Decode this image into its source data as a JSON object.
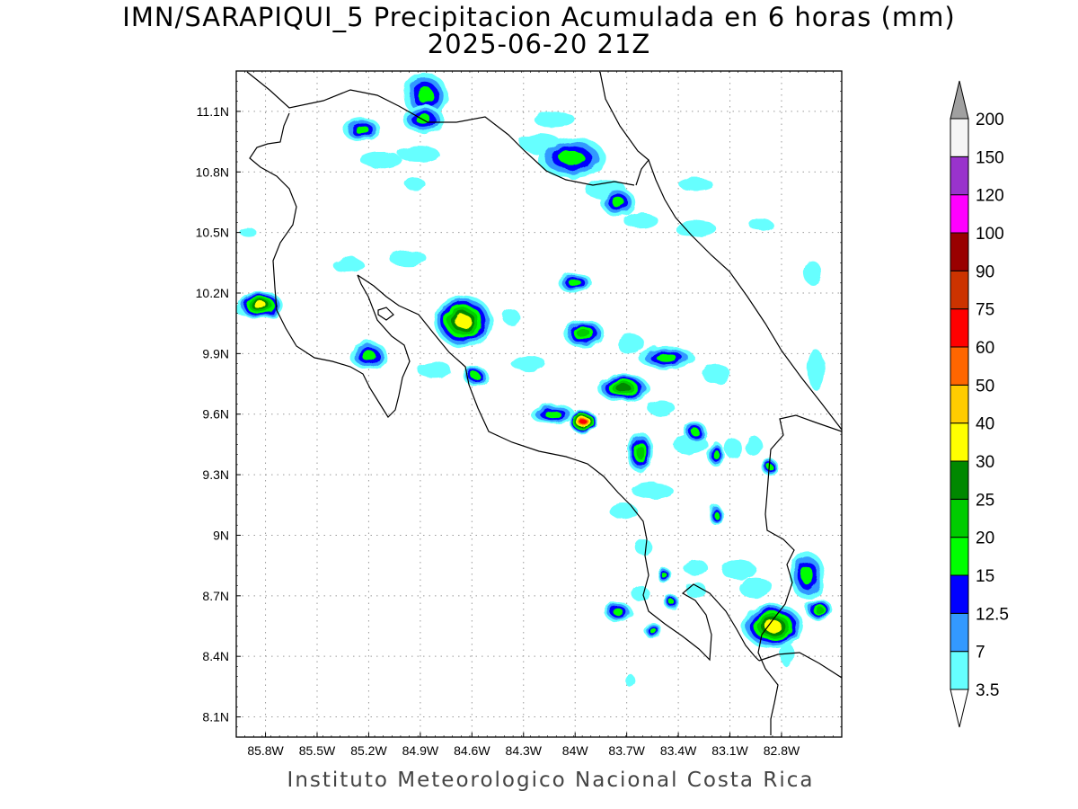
{
  "title": "IMN/SARAPIQUI_5 Precipitacion Acumulada en 6 horas (mm)",
  "subtitle": "2025-06-20 21Z",
  "credit": "Instituto Meteorologico Nacional Costa Rica",
  "axes": {
    "lon_ticks": [
      "85.8W",
      "85.5W",
      "85.2W",
      "84.9W",
      "84.6W",
      "84.3W",
      "84W",
      "83.7W",
      "83.4W",
      "83.1W",
      "82.8W"
    ],
    "lat_ticks": [
      "11.1N",
      "10.8N",
      "10.5N",
      "10.2N",
      "9.9N",
      "9.6N",
      "9.3N",
      "9N",
      "8.7N",
      "8.4N",
      "8.1N"
    ],
    "lon_range": [
      -85.97,
      -82.45
    ],
    "lat_range": [
      8.0,
      11.3
    ],
    "grid": true
  },
  "colorbar": {
    "levels": [
      "3.5",
      "7",
      "12.5",
      "15",
      "20",
      "25",
      "30",
      "40",
      "50",
      "60",
      "75",
      "90",
      "100",
      "120",
      "150",
      "200"
    ],
    "colors": [
      "#66ffff",
      "#3399ff",
      "#0000ff",
      "#00ff00",
      "#00cc00",
      "#008800",
      "#ffff00",
      "#ffcc00",
      "#ff6600",
      "#ff0000",
      "#cc3300",
      "#990000",
      "#ff00ff",
      "#9933cc",
      "#f5f5f5",
      "#a0a0a0"
    ]
  },
  "precip_cells": [
    {
      "lon": -84.87,
      "lat": 11.18,
      "rx": 0.13,
      "ry": 0.11,
      "peak": 3
    },
    {
      "lon": -84.88,
      "lat": 11.06,
      "rx": 0.12,
      "ry": 0.07,
      "peak": 3
    },
    {
      "lon": -85.24,
      "lat": 11.01,
      "rx": 0.11,
      "ry": 0.06,
      "peak": 3
    },
    {
      "lon": -84.02,
      "lat": 10.87,
      "rx": 0.2,
      "ry": 0.1,
      "peak": 3
    },
    {
      "lon": -83.75,
      "lat": 10.65,
      "rx": 0.1,
      "ry": 0.07,
      "peak": 3
    },
    {
      "lon": -85.83,
      "lat": 10.14,
      "rx": 0.13,
      "ry": 0.07,
      "peak": 6
    },
    {
      "lon": -84.65,
      "lat": 10.06,
      "rx": 0.17,
      "ry": 0.13,
      "peak": 6
    },
    {
      "lon": -85.2,
      "lat": 9.89,
      "rx": 0.11,
      "ry": 0.07,
      "peak": 3
    },
    {
      "lon": -84.58,
      "lat": 9.79,
      "rx": 0.07,
      "ry": 0.05,
      "peak": 3
    },
    {
      "lon": -84.0,
      "lat": 10.25,
      "rx": 0.1,
      "ry": 0.05,
      "peak": 3
    },
    {
      "lon": -83.95,
      "lat": 10.0,
      "rx": 0.12,
      "ry": 0.07,
      "peak": 4
    },
    {
      "lon": -83.47,
      "lat": 9.88,
      "rx": 0.16,
      "ry": 0.06,
      "peak": 3
    },
    {
      "lon": -83.72,
      "lat": 9.73,
      "rx": 0.15,
      "ry": 0.07,
      "peak": 5
    },
    {
      "lon": -84.13,
      "lat": 9.6,
      "rx": 0.13,
      "ry": 0.05,
      "peak": 3
    },
    {
      "lon": -83.95,
      "lat": 9.56,
      "rx": 0.08,
      "ry": 0.06,
      "peak": 9
    },
    {
      "lon": -83.62,
      "lat": 9.41,
      "rx": 0.08,
      "ry": 0.1,
      "peak": 4
    },
    {
      "lon": -83.3,
      "lat": 9.51,
      "rx": 0.07,
      "ry": 0.05,
      "peak": 3
    },
    {
      "lon": -83.18,
      "lat": 9.4,
      "rx": 0.05,
      "ry": 0.06,
      "peak": 3
    },
    {
      "lon": -82.87,
      "lat": 9.34,
      "rx": 0.05,
      "ry": 0.04,
      "peak": 3
    },
    {
      "lon": -83.18,
      "lat": 9.1,
      "rx": 0.04,
      "ry": 0.05,
      "peak": 3
    },
    {
      "lon": -82.65,
      "lat": 8.8,
      "rx": 0.1,
      "ry": 0.12,
      "peak": 3
    },
    {
      "lon": -82.85,
      "lat": 8.55,
      "rx": 0.18,
      "ry": 0.11,
      "peak": 6
    },
    {
      "lon": -82.58,
      "lat": 8.63,
      "rx": 0.08,
      "ry": 0.05,
      "peak": 4
    },
    {
      "lon": -83.75,
      "lat": 8.62,
      "rx": 0.08,
      "ry": 0.05,
      "peak": 3
    },
    {
      "lon": -83.55,
      "lat": 8.53,
      "rx": 0.05,
      "ry": 0.04,
      "peak": 3
    },
    {
      "lon": -83.44,
      "lat": 8.67,
      "rx": 0.04,
      "ry": 0.04,
      "peak": 3
    },
    {
      "lon": -83.48,
      "lat": 8.8,
      "rx": 0.04,
      "ry": 0.04,
      "peak": 3
    }
  ],
  "light_cells": [
    {
      "lon": -85.13,
      "lat": 10.86,
      "rx": 0.12,
      "ry": 0.04
    },
    {
      "lon": -84.91,
      "lat": 10.89,
      "rx": 0.12,
      "ry": 0.04
    },
    {
      "lon": -84.12,
      "lat": 11.06,
      "rx": 0.12,
      "ry": 0.04
    },
    {
      "lon": -84.2,
      "lat": 10.94,
      "rx": 0.12,
      "ry": 0.05
    },
    {
      "lon": -83.82,
      "lat": 10.71,
      "rx": 0.12,
      "ry": 0.05
    },
    {
      "lon": -83.62,
      "lat": 10.56,
      "rx": 0.1,
      "ry": 0.04
    },
    {
      "lon": -83.3,
      "lat": 10.52,
      "rx": 0.12,
      "ry": 0.04
    },
    {
      "lon": -83.3,
      "lat": 10.74,
      "rx": 0.1,
      "ry": 0.03
    },
    {
      "lon": -82.92,
      "lat": 10.54,
      "rx": 0.07,
      "ry": 0.03
    },
    {
      "lon": -85.32,
      "lat": 10.34,
      "rx": 0.09,
      "ry": 0.04
    },
    {
      "lon": -84.97,
      "lat": 10.37,
      "rx": 0.11,
      "ry": 0.04
    },
    {
      "lon": -84.37,
      "lat": 10.08,
      "rx": 0.05,
      "ry": 0.04
    },
    {
      "lon": -84.27,
      "lat": 9.85,
      "rx": 0.1,
      "ry": 0.04
    },
    {
      "lon": -84.82,
      "lat": 9.82,
      "rx": 0.1,
      "ry": 0.04
    },
    {
      "lon": -83.18,
      "lat": 9.8,
      "rx": 0.08,
      "ry": 0.05
    },
    {
      "lon": -83.68,
      "lat": 9.95,
      "rx": 0.08,
      "ry": 0.05
    },
    {
      "lon": -83.5,
      "lat": 9.63,
      "rx": 0.08,
      "ry": 0.04
    },
    {
      "lon": -83.33,
      "lat": 9.45,
      "rx": 0.1,
      "ry": 0.05
    },
    {
      "lon": -83.55,
      "lat": 9.22,
      "rx": 0.12,
      "ry": 0.04
    },
    {
      "lon": -83.72,
      "lat": 9.12,
      "rx": 0.08,
      "ry": 0.04
    },
    {
      "lon": -83.08,
      "lat": 9.43,
      "rx": 0.05,
      "ry": 0.05
    },
    {
      "lon": -82.96,
      "lat": 9.44,
      "rx": 0.05,
      "ry": 0.05
    },
    {
      "lon": -83.05,
      "lat": 8.83,
      "rx": 0.1,
      "ry": 0.05
    },
    {
      "lon": -83.3,
      "lat": 8.84,
      "rx": 0.07,
      "ry": 0.04
    },
    {
      "lon": -82.95,
      "lat": 8.74,
      "rx": 0.1,
      "ry": 0.05
    },
    {
      "lon": -83.3,
      "lat": 8.73,
      "rx": 0.06,
      "ry": 0.04
    },
    {
      "lon": -83.6,
      "lat": 8.94,
      "rx": 0.05,
      "ry": 0.04
    },
    {
      "lon": -83.62,
      "lat": 8.71,
      "rx": 0.05,
      "ry": 0.04
    },
    {
      "lon": -85.9,
      "lat": 10.5,
      "rx": 0.05,
      "ry": 0.02
    },
    {
      "lon": -85.93,
      "lat": 10.12,
      "rx": 0.05,
      "ry": 0.03
    },
    {
      "lon": -84.93,
      "lat": 10.74,
      "rx": 0.06,
      "ry": 0.03
    },
    {
      "lon": -82.62,
      "lat": 10.3,
      "rx": 0.05,
      "ry": 0.06
    },
    {
      "lon": -82.6,
      "lat": 9.82,
      "rx": 0.05,
      "ry": 0.1
    },
    {
      "lon": -83.68,
      "lat": 8.28,
      "rx": 0.03,
      "ry": 0.03
    },
    {
      "lon": -82.77,
      "lat": 8.41,
      "rx": 0.04,
      "ry": 0.06
    }
  ]
}
